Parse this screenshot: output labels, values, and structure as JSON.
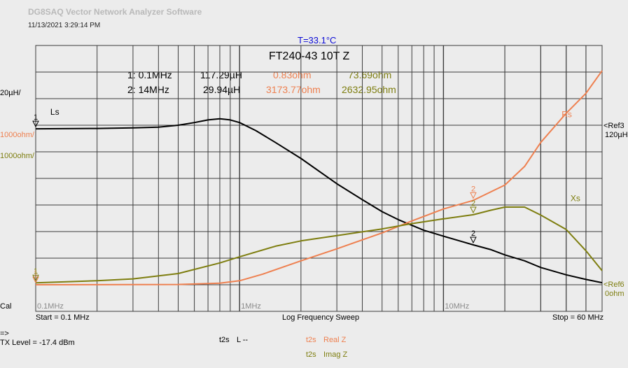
{
  "app": {
    "title": "DG8SAQ Vector Network Analyzer Software",
    "datetime": "11/13/2021   3:29:14 PM"
  },
  "header": {
    "temperature": "T=33.1°C",
    "title": "FT240-43 10T Z"
  },
  "markers": [
    {
      "id": "1",
      "label": "1: 0.1MHz",
      "ls": "117.29µH",
      "rs": "0.83ohm",
      "xs": "73.69ohm"
    },
    {
      "id": "2",
      "label": "2: 14MHz",
      "ls": "29.94µH",
      "rs": "3173.77ohm",
      "xs": "2632.95ohm"
    }
  ],
  "left_scale": {
    "ls_scale": "20µH/",
    "rs_scale": "1000ohm/",
    "xs_scale": "1000ohm/",
    "cal": "Cal"
  },
  "right_scale": {
    "ref3": "<Ref3",
    "ref3_value": "120µH",
    "ref6": "<Ref6",
    "ref6_value": "0ohm"
  },
  "footer": {
    "start": "Start = 0.1 MHz",
    "sweep": "Log Frequency Sweep",
    "stop": "Stop = 60 MHz",
    "arrow": "=>",
    "tx_level": "TX Level = -17.4 dBm",
    "trace1_mode": "t2s",
    "trace1_name": "L --",
    "trace2_mode": "t2s",
    "trace2_name": "Real Z",
    "trace3_mode": "t2s",
    "trace3_name": "Imag Z"
  },
  "colors": {
    "background": "#ececec",
    "grid": "#3c3c3c",
    "ls": "#000000",
    "rs": "#ee8050",
    "xs": "#7e7e10",
    "temperature": "#0b0bd6"
  },
  "chart_data": {
    "type": "line",
    "title": "FT240-43 10T Z",
    "xlabel": "Log Frequency Sweep",
    "x_scale": "log",
    "xlim": [
      0.1,
      60
    ],
    "x_tick_labels": [
      "0.1MHz",
      "1MHz",
      "10MHz"
    ],
    "grid": true,
    "series": [
      {
        "name": "Ls",
        "unit": "µH",
        "axis": "ls",
        "x": [
          0.1,
          0.2,
          0.3,
          0.4,
          0.5,
          0.6,
          0.7,
          0.8,
          0.9,
          1.0,
          1.2,
          1.5,
          2,
          3,
          4,
          5,
          6,
          8,
          10,
          12,
          14,
          17,
          20,
          25,
          30,
          40,
          50,
          60
        ],
        "values": [
          117.3,
          117.6,
          118,
          118.5,
          120,
          122,
          124,
          124.9,
          124,
          122,
          116,
          107,
          95,
          76,
          64,
          55,
          49,
          41,
          36.5,
          33,
          30,
          26.5,
          22.5,
          18,
          13,
          7.5,
          4,
          1.5
        ]
      },
      {
        "name": "Rs",
        "unit": "ohm",
        "axis": "z",
        "x": [
          0.1,
          0.2,
          0.5,
          0.8,
          1.0,
          1.3,
          2,
          3,
          5,
          7,
          10,
          14,
          20,
          25,
          30,
          40,
          50,
          60
        ],
        "values": [
          0.83,
          2,
          10,
          60,
          150,
          400,
          900,
          1350,
          1950,
          2400,
          2850,
          3174,
          3750,
          4450,
          5350,
          6450,
          7200,
          8050
        ]
      },
      {
        "name": "Xs",
        "unit": "ohm",
        "axis": "z",
        "x": [
          0.1,
          0.2,
          0.3,
          0.5,
          0.8,
          1.0,
          1.5,
          2,
          3,
          5,
          7,
          10,
          14,
          17,
          20,
          25,
          30,
          40,
          50,
          60
        ],
        "values": [
          73.69,
          150,
          220,
          420,
          820,
          1050,
          1450,
          1650,
          1850,
          2100,
          2300,
          2480,
          2633,
          2800,
          2920,
          2920,
          2620,
          2080,
          1280,
          530
        ]
      }
    ],
    "marker_points": [
      {
        "id": "1",
        "x": 0.1
      },
      {
        "id": "2",
        "x": 14
      }
    ]
  }
}
